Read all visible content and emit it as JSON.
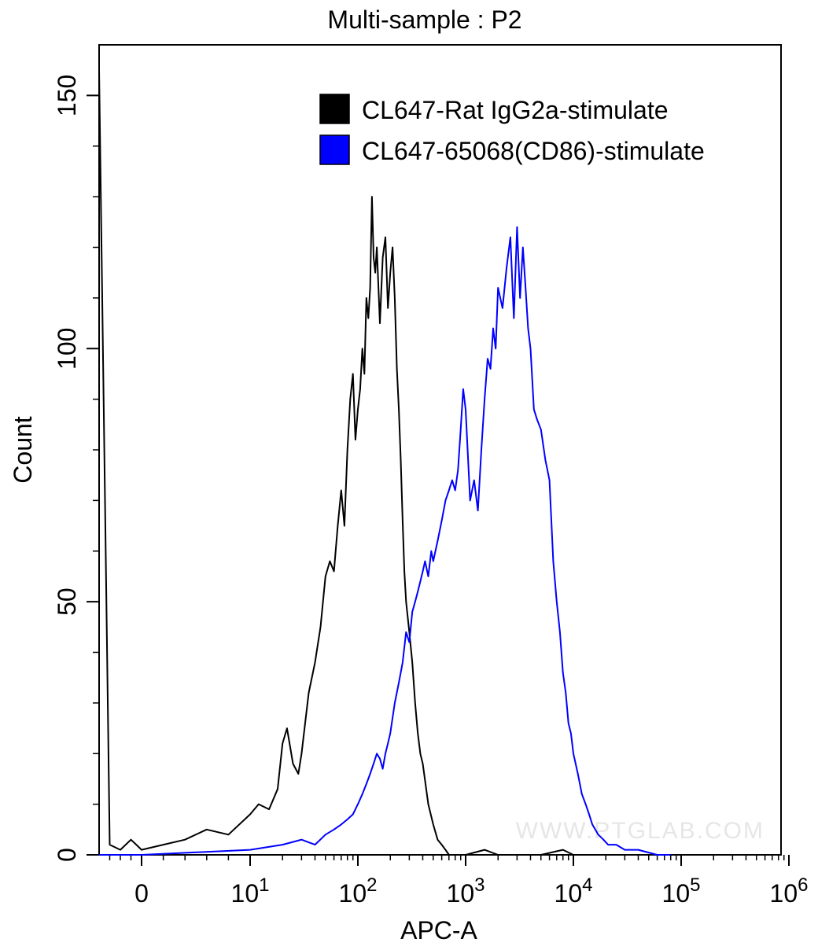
{
  "chart_data": {
    "type": "line",
    "title": "Multi-sample : P2",
    "xlabel": "APC-A",
    "ylabel": "Count",
    "x_scale": "biexponential",
    "xlim": [
      -40,
      1000000
    ],
    "ylim": [
      0,
      160
    ],
    "x_ticks": [
      {
        "value": 0,
        "base": "0",
        "exp": ""
      },
      {
        "value": 10,
        "base": "10",
        "exp": "1"
      },
      {
        "value": 100,
        "base": "10",
        "exp": "2"
      },
      {
        "value": 1000,
        "base": "10",
        "exp": "3"
      },
      {
        "value": 10000,
        "base": "10",
        "exp": "4"
      },
      {
        "value": 100000,
        "base": "10",
        "exp": "5"
      },
      {
        "value": 1000000,
        "base": "10",
        "exp": "6"
      }
    ],
    "y_ticks": [
      0,
      50,
      100,
      150
    ],
    "grid": false,
    "legend_position": "top-right",
    "watermark": "WWW.PTGLAB.COM",
    "series": [
      {
        "name": "CL647-Rat IgG2a-stimulate",
        "color": "#000000",
        "x": [
          -40,
          -30,
          -20,
          -10,
          -5,
          0,
          2,
          4,
          6,
          8,
          10,
          12,
          15,
          18,
          20,
          22,
          25,
          28,
          30,
          35,
          40,
          45,
          50,
          55,
          60,
          65,
          70,
          75,
          80,
          85,
          90,
          95,
          100,
          105,
          110,
          115,
          120,
          125,
          130,
          135,
          140,
          145,
          150,
          160,
          170,
          180,
          190,
          200,
          210,
          220,
          230,
          240,
          250,
          260,
          270,
          280,
          300,
          320,
          340,
          360,
          380,
          400,
          450,
          500,
          550,
          600,
          650,
          700,
          800,
          1000,
          1500,
          2000,
          3000,
          5000,
          8000,
          10000,
          15000,
          20000
        ],
        "y": [
          155,
          2,
          1,
          3,
          2,
          1,
          2,
          3,
          5,
          4,
          8,
          10,
          9,
          13,
          22,
          25,
          18,
          16,
          20,
          32,
          38,
          45,
          55,
          58,
          56,
          65,
          72,
          65,
          80,
          90,
          95,
          82,
          88,
          92,
          100,
          95,
          110,
          106,
          112,
          130,
          118,
          115,
          120,
          105,
          118,
          122,
          108,
          115,
          120,
          110,
          96,
          88,
          78,
          66,
          56,
          50,
          44,
          38,
          30,
          24,
          20,
          18,
          10,
          6,
          3,
          2,
          1,
          0,
          0,
          0,
          1,
          0,
          0,
          0,
          1,
          0,
          0,
          0
        ]
      },
      {
        "name": "CL647-65068(CD86)-stimulate",
        "color": "#0000ff",
        "x": [
          -40,
          0,
          10,
          20,
          30,
          40,
          50,
          60,
          70,
          80,
          90,
          100,
          110,
          120,
          130,
          140,
          150,
          160,
          170,
          180,
          190,
          200,
          220,
          240,
          260,
          280,
          300,
          320,
          340,
          360,
          380,
          400,
          420,
          450,
          480,
          500,
          550,
          600,
          650,
          700,
          750,
          800,
          850,
          900,
          950,
          1000,
          1100,
          1200,
          1300,
          1400,
          1500,
          1600,
          1700,
          1800,
          1900,
          2000,
          2200,
          2400,
          2600,
          2800,
          3000,
          3200,
          3400,
          3600,
          3800,
          4000,
          4300,
          4600,
          5000,
          5500,
          6000,
          6500,
          7000,
          7500,
          8000,
          8500,
          9000,
          9500,
          10000,
          11000,
          12000,
          13000,
          14000,
          15000,
          17000,
          19000,
          21000,
          25000,
          30000,
          40000,
          60000,
          80000
        ],
        "y": [
          0,
          0,
          1,
          2,
          3,
          2,
          4,
          5,
          6,
          7,
          8,
          10,
          12,
          14,
          16,
          18,
          20,
          19,
          17,
          20,
          22,
          24,
          30,
          34,
          38,
          44,
          42,
          48,
          50,
          52,
          54,
          56,
          58,
          55,
          60,
          58,
          62,
          66,
          70,
          72,
          74,
          72,
          76,
          84,
          92,
          88,
          70,
          74,
          68,
          80,
          90,
          98,
          96,
          104,
          100,
          112,
          108,
          116,
          122,
          106,
          124,
          110,
          120,
          112,
          104,
          100,
          88,
          86,
          84,
          78,
          74,
          58,
          50,
          44,
          36,
          32,
          26,
          24,
          20,
          16,
          12,
          10,
          8,
          6,
          4,
          3,
          2,
          2,
          1,
          1,
          0,
          0
        ]
      }
    ]
  }
}
